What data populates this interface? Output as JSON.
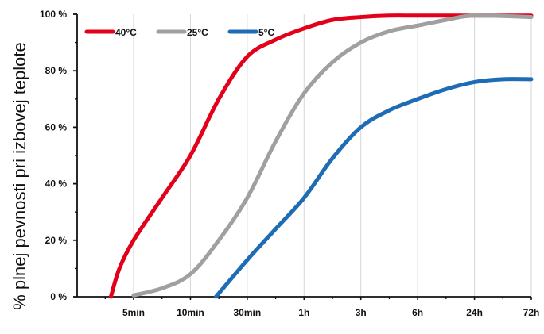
{
  "chart_data": {
    "type": "line",
    "title": "",
    "xlabel": "",
    "ylabel": "% plnej pevnosti pri izbovej teplote",
    "x_scale": "categorical time (non-linear)",
    "categories": [
      "5min",
      "10min",
      "30min",
      "1h",
      "3h",
      "6h",
      "24h",
      "72h"
    ],
    "ylim": [
      0,
      100
    ],
    "y_ticks": [
      {
        "value": 0,
        "label": "0 %"
      },
      {
        "value": 20,
        "label": "20 %"
      },
      {
        "value": 40,
        "label": "40 %"
      },
      {
        "value": 60,
        "label": "60 %"
      },
      {
        "value": 80,
        "label": "80 %"
      },
      {
        "value": 100,
        "label": "100 %"
      }
    ],
    "grid": {
      "vertical": true,
      "horizontal": false
    },
    "legend": {
      "placement": "top-left",
      "orientation": "horizontal"
    },
    "series": [
      {
        "name": "40°C",
        "color": "#e3001b",
        "points": [
          {
            "x": -0.4,
            "y": 0
          },
          {
            "x": -0.25,
            "y": 10
          },
          {
            "x": 0,
            "y": 20
          },
          {
            "x": 0.5,
            "y": 35
          },
          {
            "x": 1,
            "y": 50
          },
          {
            "x": 1.5,
            "y": 70
          },
          {
            "x": 2,
            "y": 85
          },
          {
            "x": 2.5,
            "y": 91
          },
          {
            "x": 3,
            "y": 95
          },
          {
            "x": 3.5,
            "y": 98
          },
          {
            "x": 4,
            "y": 99
          },
          {
            "x": 4.5,
            "y": 99.5
          },
          {
            "x": 5,
            "y": 99.5
          },
          {
            "x": 6,
            "y": 99.5
          },
          {
            "x": 7,
            "y": 99.5
          }
        ]
      },
      {
        "name": "25°C",
        "color": "#a0a0a0",
        "points": [
          {
            "x": 0,
            "y": 0.5
          },
          {
            "x": 0.5,
            "y": 3
          },
          {
            "x": 1,
            "y": 8
          },
          {
            "x": 1.5,
            "y": 20
          },
          {
            "x": 2,
            "y": 35
          },
          {
            "x": 2.5,
            "y": 55
          },
          {
            "x": 3,
            "y": 72
          },
          {
            "x": 3.5,
            "y": 83
          },
          {
            "x": 4,
            "y": 90
          },
          {
            "x": 4.5,
            "y": 94
          },
          {
            "x": 5,
            "y": 96
          },
          {
            "x": 5.5,
            "y": 98
          },
          {
            "x": 6,
            "y": 99.5
          },
          {
            "x": 7,
            "y": 99
          }
        ]
      },
      {
        "name": "5°C",
        "color": "#1e6cb5",
        "points": [
          {
            "x": 1.45,
            "y": 0
          },
          {
            "x": 2,
            "y": 13
          },
          {
            "x": 2.5,
            "y": 24
          },
          {
            "x": 3,
            "y": 35
          },
          {
            "x": 3.5,
            "y": 49
          },
          {
            "x": 4,
            "y": 60
          },
          {
            "x": 4.5,
            "y": 66
          },
          {
            "x": 5,
            "y": 70
          },
          {
            "x": 5.5,
            "y": 73.5
          },
          {
            "x": 6,
            "y": 76
          },
          {
            "x": 6.5,
            "y": 77
          },
          {
            "x": 7,
            "y": 77
          }
        ]
      }
    ]
  }
}
